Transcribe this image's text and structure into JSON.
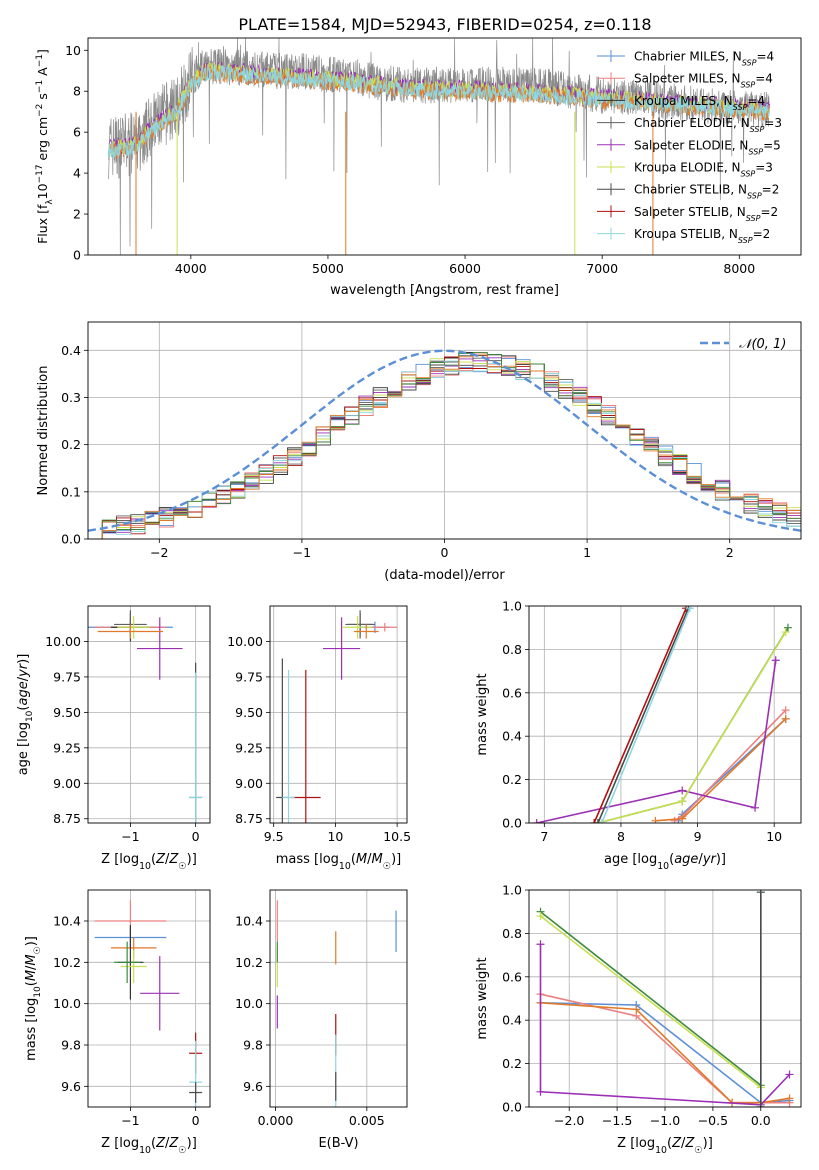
{
  "title": "PLATE=1584, MJD=52943, FIBERID=0254, z=0.118",
  "colors": {
    "Chabrier MILES": "#5b8fd6",
    "Salpeter MILES": "#ee7f7f",
    "Kroupa MILES": "#333333",
    "Chabrier ELODIE": "#606060",
    "Salpeter ELODIE": "#9b30b5",
    "Kroupa ELODIE": "#c8e050",
    "Chabrier STELIB": "#4a4a4a",
    "Salpeter STELIB": "#b01010",
    "Kroupa STELIB": "#8ed6e0",
    "orange": "#e07a2a",
    "green": "#3d8a3d",
    "gray": "#8a8a8a",
    "normal_curve": "#5b8fd6"
  },
  "chart_data": [
    {
      "type": "line",
      "name": "spectrum",
      "xlabel": "wavelength [Angstrom, rest frame]",
      "ylabel": "Flux [f_λ10^-17 erg cm^-2 s^-1 A^-1]",
      "xlim": [
        3250,
        8450
      ],
      "ylim": [
        0,
        10.6
      ],
      "xticks": [
        4000,
        5000,
        6000,
        7000,
        8000
      ],
      "yticks": [
        0,
        2,
        4,
        6,
        8,
        10
      ],
      "legend_position": "top-right",
      "legend": [
        {
          "label": "Chabrier MILES, N_SSP=4"
        },
        {
          "label": "Salpeter MILES, N_SSP=4"
        },
        {
          "label": "Kroupa MILES, N_SSP=4"
        },
        {
          "label": "Chabrier ELODIE, N_SSP=3"
        },
        {
          "label": "Salpeter ELODIE, N_SSP=5"
        },
        {
          "label": "Kroupa ELODIE, N_SSP=3"
        },
        {
          "label": "Chabrier STELIB, N_SSP=2"
        },
        {
          "label": "Salpeter STELIB, N_SSP=2"
        },
        {
          "label": "Kroupa STELIB, N_SSP=2"
        }
      ],
      "data_continuum": [
        [
          3400,
          5.3
        ],
        [
          3600,
          5.4
        ],
        [
          3700,
          6.2
        ],
        [
          3800,
          6.8
        ],
        [
          3900,
          7.3
        ],
        [
          4000,
          8.6
        ],
        [
          4100,
          9.3
        ],
        [
          4200,
          9.2
        ],
        [
          4400,
          9.1
        ],
        [
          4600,
          9.0
        ],
        [
          4800,
          9.0
        ],
        [
          5000,
          8.8
        ],
        [
          5200,
          8.7
        ],
        [
          5400,
          8.4
        ],
        [
          5600,
          8.3
        ],
        [
          5800,
          8.3
        ],
        [
          6000,
          8.3
        ],
        [
          6200,
          8.3
        ],
        [
          6400,
          8.3
        ],
        [
          6600,
          8.2
        ],
        [
          6800,
          8.0
        ],
        [
          7000,
          7.8
        ],
        [
          7200,
          7.7
        ],
        [
          7400,
          7.6
        ],
        [
          7600,
          7.4
        ],
        [
          7800,
          7.3
        ],
        [
          8000,
          7.2
        ],
        [
          8200,
          7.1
        ]
      ],
      "model_continuum": [
        [
          3400,
          5.1
        ],
        [
          3600,
          5.3
        ],
        [
          3700,
          6.0
        ],
        [
          3800,
          6.5
        ],
        [
          3900,
          7.0
        ],
        [
          4000,
          8.3
        ],
        [
          4100,
          8.9
        ],
        [
          4200,
          8.9
        ],
        [
          4400,
          8.8
        ],
        [
          4600,
          8.7
        ],
        [
          4800,
          8.6
        ],
        [
          5000,
          8.5
        ],
        [
          5200,
          8.4
        ],
        [
          5400,
          8.2
        ],
        [
          5600,
          8.1
        ],
        [
          5800,
          8.0
        ],
        [
          6000,
          8.0
        ],
        [
          6200,
          7.9
        ],
        [
          6400,
          7.9
        ],
        [
          6600,
          7.8
        ],
        [
          6800,
          7.7
        ],
        [
          7000,
          7.6
        ],
        [
          7200,
          7.5
        ],
        [
          7400,
          7.4
        ],
        [
          7600,
          7.3
        ],
        [
          7800,
          7.2
        ],
        [
          8000,
          7.1
        ],
        [
          8200,
          7.0
        ]
      ]
    },
    {
      "type": "line",
      "name": "residual histogram",
      "xlabel": "(data-model)/error",
      "ylabel": "Normed distribution",
      "xlim": [
        -2.5,
        2.5
      ],
      "ylim": [
        0,
        0.46
      ],
      "xticks": [
        -2,
        -1,
        0,
        1,
        2
      ],
      "yticks": [
        0.0,
        0.1,
        0.2,
        0.3,
        0.4
      ],
      "legend_position": "top-right",
      "legend": [
        {
          "label": "𝒩(0, 1)"
        }
      ],
      "bins": {
        "start": -2.5,
        "width": 0.1
      }
    },
    {
      "type": "scatter",
      "name": "age vs Z",
      "xlabel": "Z [log10(Z/Z☉)]",
      "ylabel": "age  [log10(age/yr)]",
      "xlim": [
        -1.65,
        0.22
      ],
      "ylim": [
        8.72,
        10.25
      ],
      "xticks": [
        -1,
        0
      ],
      "yticks": [
        8.75,
        9.0,
        9.25,
        9.5,
        9.75,
        10.0
      ],
      "points": [
        {
          "series": "Chabrier MILES",
          "x": -1.0,
          "y": 10.1,
          "xerr": 0.65,
          "yerr": 0.05
        },
        {
          "series": "Salpeter MILES",
          "x": -1.0,
          "y": 10.1,
          "xerr": 0.55,
          "yerr": 0.04
        },
        {
          "series": "Kroupa MILES",
          "x": -1.0,
          "y": 10.1,
          "xerr": 0.3,
          "yerr": 0.1
        },
        {
          "series": "Chabrier ELODIE",
          "x": -1.0,
          "y": 10.12,
          "xerr": 0.25,
          "yerr": 0.1
        },
        {
          "series": "Salpeter ELODIE",
          "x": -0.55,
          "y": 9.95,
          "xerr": 0.35,
          "yerr": 0.22
        },
        {
          "series": "Kroupa ELODIE",
          "x": -0.95,
          "y": 10.1,
          "xerr": 0.25,
          "yerr": 0.08
        },
        {
          "series": "orange",
          "x": -1.0,
          "y": 10.07,
          "xerr": 0.5,
          "yerr": 0.05
        },
        {
          "series": "Chabrier STELIB",
          "x": 0.0,
          "y": 8.9,
          "xerr": 0.1,
          "yerr": 0.95
        },
        {
          "series": "Kroupa STELIB",
          "x": 0.0,
          "y": 8.9,
          "xerr": 0.1,
          "yerr": 0.88
        }
      ]
    },
    {
      "type": "scatter",
      "name": "age vs mass",
      "xlabel": "mass [log10(M/M☉)]",
      "ylabel": "",
      "xlim": [
        9.47,
        10.58
      ],
      "ylim": [
        8.72,
        10.25
      ],
      "xticks": [
        9.5,
        10.0,
        10.5
      ],
      "yticks": [
        8.75,
        9.0,
        9.25,
        9.5,
        9.75,
        10.0
      ],
      "points": [
        {
          "series": "Chabrier MILES",
          "x": 10.32,
          "y": 10.1,
          "xerr": 0.12,
          "yerr": 0.04
        },
        {
          "series": "Salpeter MILES",
          "x": 10.4,
          "y": 10.1,
          "xerr": 0.1,
          "yerr": 0.03
        },
        {
          "series": "Kroupa MILES",
          "x": 10.2,
          "y": 10.12,
          "xerr": 0.1,
          "yerr": 0.08
        },
        {
          "series": "Chabrier ELODIE",
          "x": 10.2,
          "y": 10.12,
          "xerr": 0.12,
          "yerr": 0.1
        },
        {
          "series": "Salpeter ELODIE",
          "x": 10.05,
          "y": 9.95,
          "xerr": 0.15,
          "yerr": 0.22
        },
        {
          "series": "Kroupa ELODIE",
          "x": 10.18,
          "y": 10.1,
          "xerr": 0.12,
          "yerr": 0.08
        },
        {
          "series": "orange",
          "x": 10.25,
          "y": 10.07,
          "xerr": 0.1,
          "yerr": 0.05
        },
        {
          "series": "Chabrier STELIB",
          "x": 9.57,
          "y": 8.9,
          "xerr": 0.05,
          "yerr": 0.98
        },
        {
          "series": "Salpeter STELIB",
          "x": 9.76,
          "y": 8.9,
          "xerr": 0.12,
          "yerr": 0.9
        },
        {
          "series": "Kroupa STELIB",
          "x": 9.62,
          "y": 8.9,
          "xerr": 0.05,
          "yerr": 0.9
        }
      ]
    },
    {
      "type": "line",
      "name": "mass weight vs age",
      "xlabel": "age  [log10(age/yr)]",
      "ylabel": "mass weight",
      "xlim": [
        6.8,
        10.35
      ],
      "ylim": [
        0,
        1.0
      ],
      "xticks": [
        7,
        8,
        9,
        10
      ],
      "yticks": [
        0.0,
        0.2,
        0.4,
        0.6,
        0.8,
        1.0
      ],
      "series": [
        {
          "key": "Chabrier MILES",
          "x": [
            8.75,
            8.8,
            10.15
          ],
          "y": [
            0.01,
            0.04,
            0.48
          ]
        },
        {
          "key": "Salpeter MILES",
          "x": [
            8.7,
            8.8,
            10.15
          ],
          "y": [
            0.01,
            0.03,
            0.52
          ]
        },
        {
          "key": "orange",
          "x": [
            8.45,
            8.8,
            10.15
          ],
          "y": [
            0.01,
            0.02,
            0.48
          ]
        },
        {
          "key": "Salpeter ELODIE",
          "x": [
            6.9,
            8.8,
            9.75,
            10.02
          ],
          "y": [
            0.0,
            0.15,
            0.07,
            0.75
          ]
        },
        {
          "key": "green",
          "x": [
            7.7,
            8.8,
            10.18
          ],
          "y": [
            0.0,
            0.1,
            0.9
          ]
        },
        {
          "key": "Kroupa ELODIE",
          "x": [
            7.7,
            8.8,
            10.15
          ],
          "y": [
            0.0,
            0.1,
            0.88
          ]
        },
        {
          "key": "Salpeter STELIB",
          "x": [
            7.65,
            8.85
          ],
          "y": [
            0.0,
            0.99
          ]
        },
        {
          "key": "Chabrier STELIB",
          "x": [
            7.7,
            8.88
          ],
          "y": [
            0.0,
            0.99
          ]
        },
        {
          "key": "Kroupa STELIB",
          "x": [
            7.75,
            8.9
          ],
          "y": [
            0.0,
            0.99
          ]
        }
      ]
    },
    {
      "type": "scatter",
      "name": "mass vs Z",
      "xlabel": "Z [log10(Z/Z☉)]",
      "ylabel": "mass [log10(M/M☉)]",
      "xlim": [
        -1.65,
        0.22
      ],
      "ylim": [
        9.5,
        10.55
      ],
      "xticks": [
        -1,
        0
      ],
      "yticks": [
        9.6,
        9.8,
        10.0,
        10.2,
        10.4
      ],
      "points": [
        {
          "series": "Salpeter MILES",
          "x": -1.0,
          "y": 10.4,
          "xerr": 0.55,
          "yerr": 0.1
        },
        {
          "series": "Chabrier MILES",
          "x": -1.0,
          "y": 10.32,
          "xerr": 0.55,
          "yerr": 0.05
        },
        {
          "series": "orange",
          "x": -0.95,
          "y": 10.27,
          "xerr": 0.35,
          "yerr": 0.05
        },
        {
          "series": "Kroupa MILES",
          "x": -1.0,
          "y": 10.2,
          "xerr": 0.2,
          "yerr": 0.18
        },
        {
          "series": "Kroupa ELODIE",
          "x": -0.95,
          "y": 10.18,
          "xerr": 0.2,
          "yerr": 0.08
        },
        {
          "series": "green",
          "x": -1.05,
          "y": 10.2,
          "xerr": 0.2,
          "yerr": 0.1
        },
        {
          "series": "Salpeter ELODIE",
          "x": -0.55,
          "y": 10.05,
          "xerr": 0.3,
          "yerr": 0.18
        },
        {
          "series": "Salpeter STELIB",
          "x": 0.0,
          "y": 9.76,
          "xerr": 0.1,
          "yerr": 0.1
        },
        {
          "series": "Kroupa STELIB",
          "x": 0.0,
          "y": 9.62,
          "xerr": 0.1,
          "yerr": 0.2
        },
        {
          "series": "Chabrier STELIB",
          "x": 0.0,
          "y": 9.57,
          "xerr": 0.1,
          "yerr": 0.05
        }
      ]
    },
    {
      "type": "scatter",
      "name": "mass vs E(B-V)",
      "xlabel": "E(B-V)",
      "ylabel": "",
      "xlim": [
        -0.0003,
        0.0072
      ],
      "ylim": [
        9.5,
        10.55
      ],
      "xticks": [
        0.0,
        0.005
      ],
      "xtick_labels": [
        "0.000",
        "0.005"
      ],
      "yticks": [
        9.6,
        9.8,
        10.0,
        10.2,
        10.4
      ],
      "points": [
        {
          "series": "Salpeter MILES",
          "x": 0.0001,
          "y": 10.4,
          "yerr": 0.1
        },
        {
          "series": "Kroupa ELODIE",
          "x": 0.0001,
          "y": 10.18,
          "yerr": 0.1
        },
        {
          "series": "green",
          "x": 0.0001,
          "y": 10.25,
          "yerr": 0.05
        },
        {
          "series": "Salpeter ELODIE",
          "x": 0.0001,
          "y": 9.96,
          "yerr": 0.08
        },
        {
          "series": "orange",
          "x": 0.0033,
          "y": 10.27,
          "yerr": 0.08
        },
        {
          "series": "Chabrier MILES",
          "x": 0.0066,
          "y": 10.35,
          "yerr": 0.1
        },
        {
          "series": "Salpeter STELIB",
          "x": 0.0033,
          "y": 9.85,
          "yerr": 0.1
        },
        {
          "series": "Kroupa STELIB",
          "x": 0.0033,
          "y": 9.65,
          "yerr": 0.2
        },
        {
          "series": "Chabrier STELIB",
          "x": 0.0033,
          "y": 9.6,
          "yerr": 0.07
        }
      ]
    },
    {
      "type": "line",
      "name": "mass weight vs Z",
      "xlabel": "Z [log10(Z/Z☉)]",
      "ylabel": "mass weight",
      "xlim": [
        -2.42,
        0.42
      ],
      "ylim": [
        0,
        1.0
      ],
      "xticks": [
        -2.0,
        -1.5,
        -1.0,
        -0.5,
        0.0
      ],
      "xtick_labels": [
        "−2.0",
        "−1.5",
        "−1.0",
        "−0.5",
        "0.0"
      ],
      "yticks": [
        0.0,
        0.2,
        0.4,
        0.6,
        0.8,
        1.0
      ],
      "series": [
        {
          "key": "green",
          "x": [
            -2.3,
            0.0
          ],
          "y": [
            0.9,
            0.1
          ]
        },
        {
          "key": "Kroupa ELODIE",
          "x": [
            -2.3,
            0.0
          ],
          "y": [
            0.88,
            0.09
          ]
        },
        {
          "key": "Chabrier MILES",
          "x": [
            -2.3,
            -1.3,
            0.0,
            0.3
          ],
          "y": [
            0.48,
            0.47,
            0.02,
            0.03
          ]
        },
        {
          "key": "Salpeter MILES",
          "x": [
            -2.3,
            -1.3,
            -0.3,
            0.0,
            0.3
          ],
          "y": [
            0.52,
            0.42,
            0.02,
            0.02,
            0.02
          ]
        },
        {
          "key": "orange",
          "x": [
            -2.3,
            -1.3,
            -0.3,
            0.0,
            0.3
          ],
          "y": [
            0.48,
            0.45,
            0.02,
            0.02,
            0.04
          ]
        },
        {
          "key": "Salpeter ELODIE",
          "x": [
            -2.3,
            -2.3,
            0.0,
            0.3
          ],
          "y": [
            0.75,
            0.07,
            0.01,
            0.15
          ]
        },
        {
          "key": "Kroupa STELIB",
          "x": [
            0.0,
            0.0
          ],
          "y": [
            0.0,
            0.99
          ]
        },
        {
          "key": "Chabrier STELIB",
          "x": [
            0.0,
            0.0
          ],
          "y": [
            0.0,
            0.99
          ]
        }
      ]
    }
  ]
}
